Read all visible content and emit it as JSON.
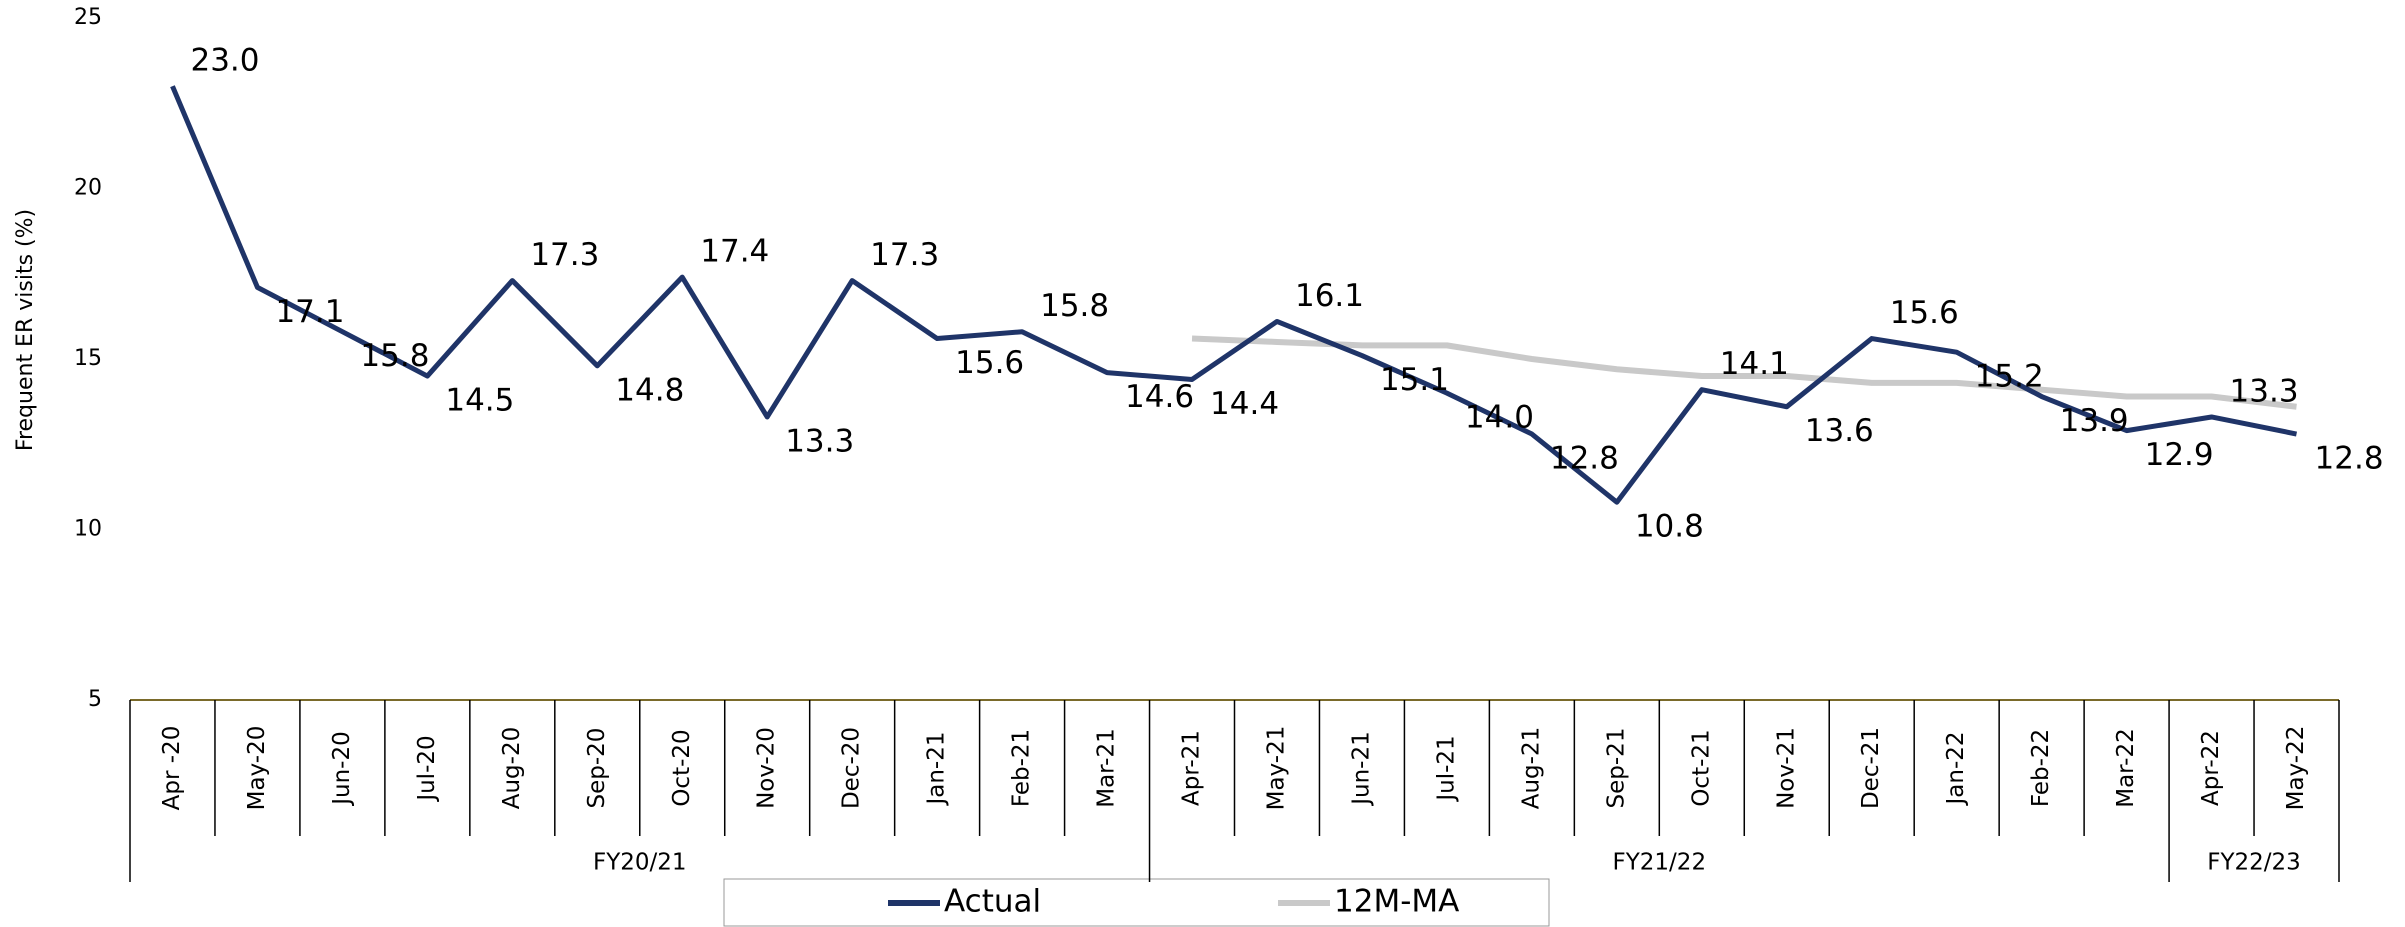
{
  "chart_data": {
    "type": "line",
    "y_label": "Frequent ER visits (%)",
    "categories": [
      "Apr -20",
      "May-20",
      "Jun-20",
      "Jul-20",
      "Aug-20",
      "Sep-20",
      "Oct-20",
      "Nov-20",
      "Dec-20",
      "Jan-21",
      "Feb-21",
      "Mar-21",
      "Apr-21",
      "May-21",
      "Jun-21",
      "Jul-21",
      "Aug-21",
      "Sep-21",
      "Oct-21",
      "Nov-21",
      "Dec-21",
      "Jan-22",
      "Feb-22",
      "Mar-22",
      "Apr-22",
      "May-22"
    ],
    "groups": [
      {
        "label": "FY20/21",
        "span": 12
      },
      {
        "label": "FY21/22",
        "span": 12
      },
      {
        "label": "FY22/23",
        "span": 2
      }
    ],
    "series": [
      {
        "name": "Actual",
        "color": "#1f3468",
        "values": [
          23.0,
          17.1,
          15.8,
          14.5,
          17.3,
          14.8,
          17.4,
          13.3,
          17.3,
          15.6,
          15.8,
          14.6,
          14.4,
          16.1,
          15.1,
          14.0,
          12.8,
          10.8,
          14.1,
          13.6,
          15.6,
          15.2,
          13.9,
          12.9,
          13.3,
          12.8
        ],
        "value_labels": [
          "23.0",
          "17.1",
          "15.8",
          "14.5",
          "17.3",
          "14.8",
          "17.4",
          "13.3",
          "17.3",
          "15.6",
          "15.8",
          "14.6",
          "14.4",
          "16.1",
          "15.1",
          "14.0",
          "12.8",
          "10.8",
          "14.1",
          "13.6",
          "15.6",
          "15.2",
          "13.9",
          "12.9",
          "13.3",
          "12.8"
        ]
      },
      {
        "name": "12M-MA",
        "color": "#c9c9c9",
        "values": [
          null,
          null,
          null,
          null,
          null,
          null,
          null,
          null,
          null,
          null,
          null,
          null,
          15.6,
          15.5,
          15.4,
          15.4,
          15.0,
          14.7,
          14.5,
          14.5,
          14.3,
          14.3,
          14.1,
          13.9,
          13.9,
          13.6
        ]
      }
    ],
    "ylim": [
      5,
      25
    ],
    "yticks": [
      5,
      10,
      15,
      20,
      25
    ],
    "grid": false
  }
}
